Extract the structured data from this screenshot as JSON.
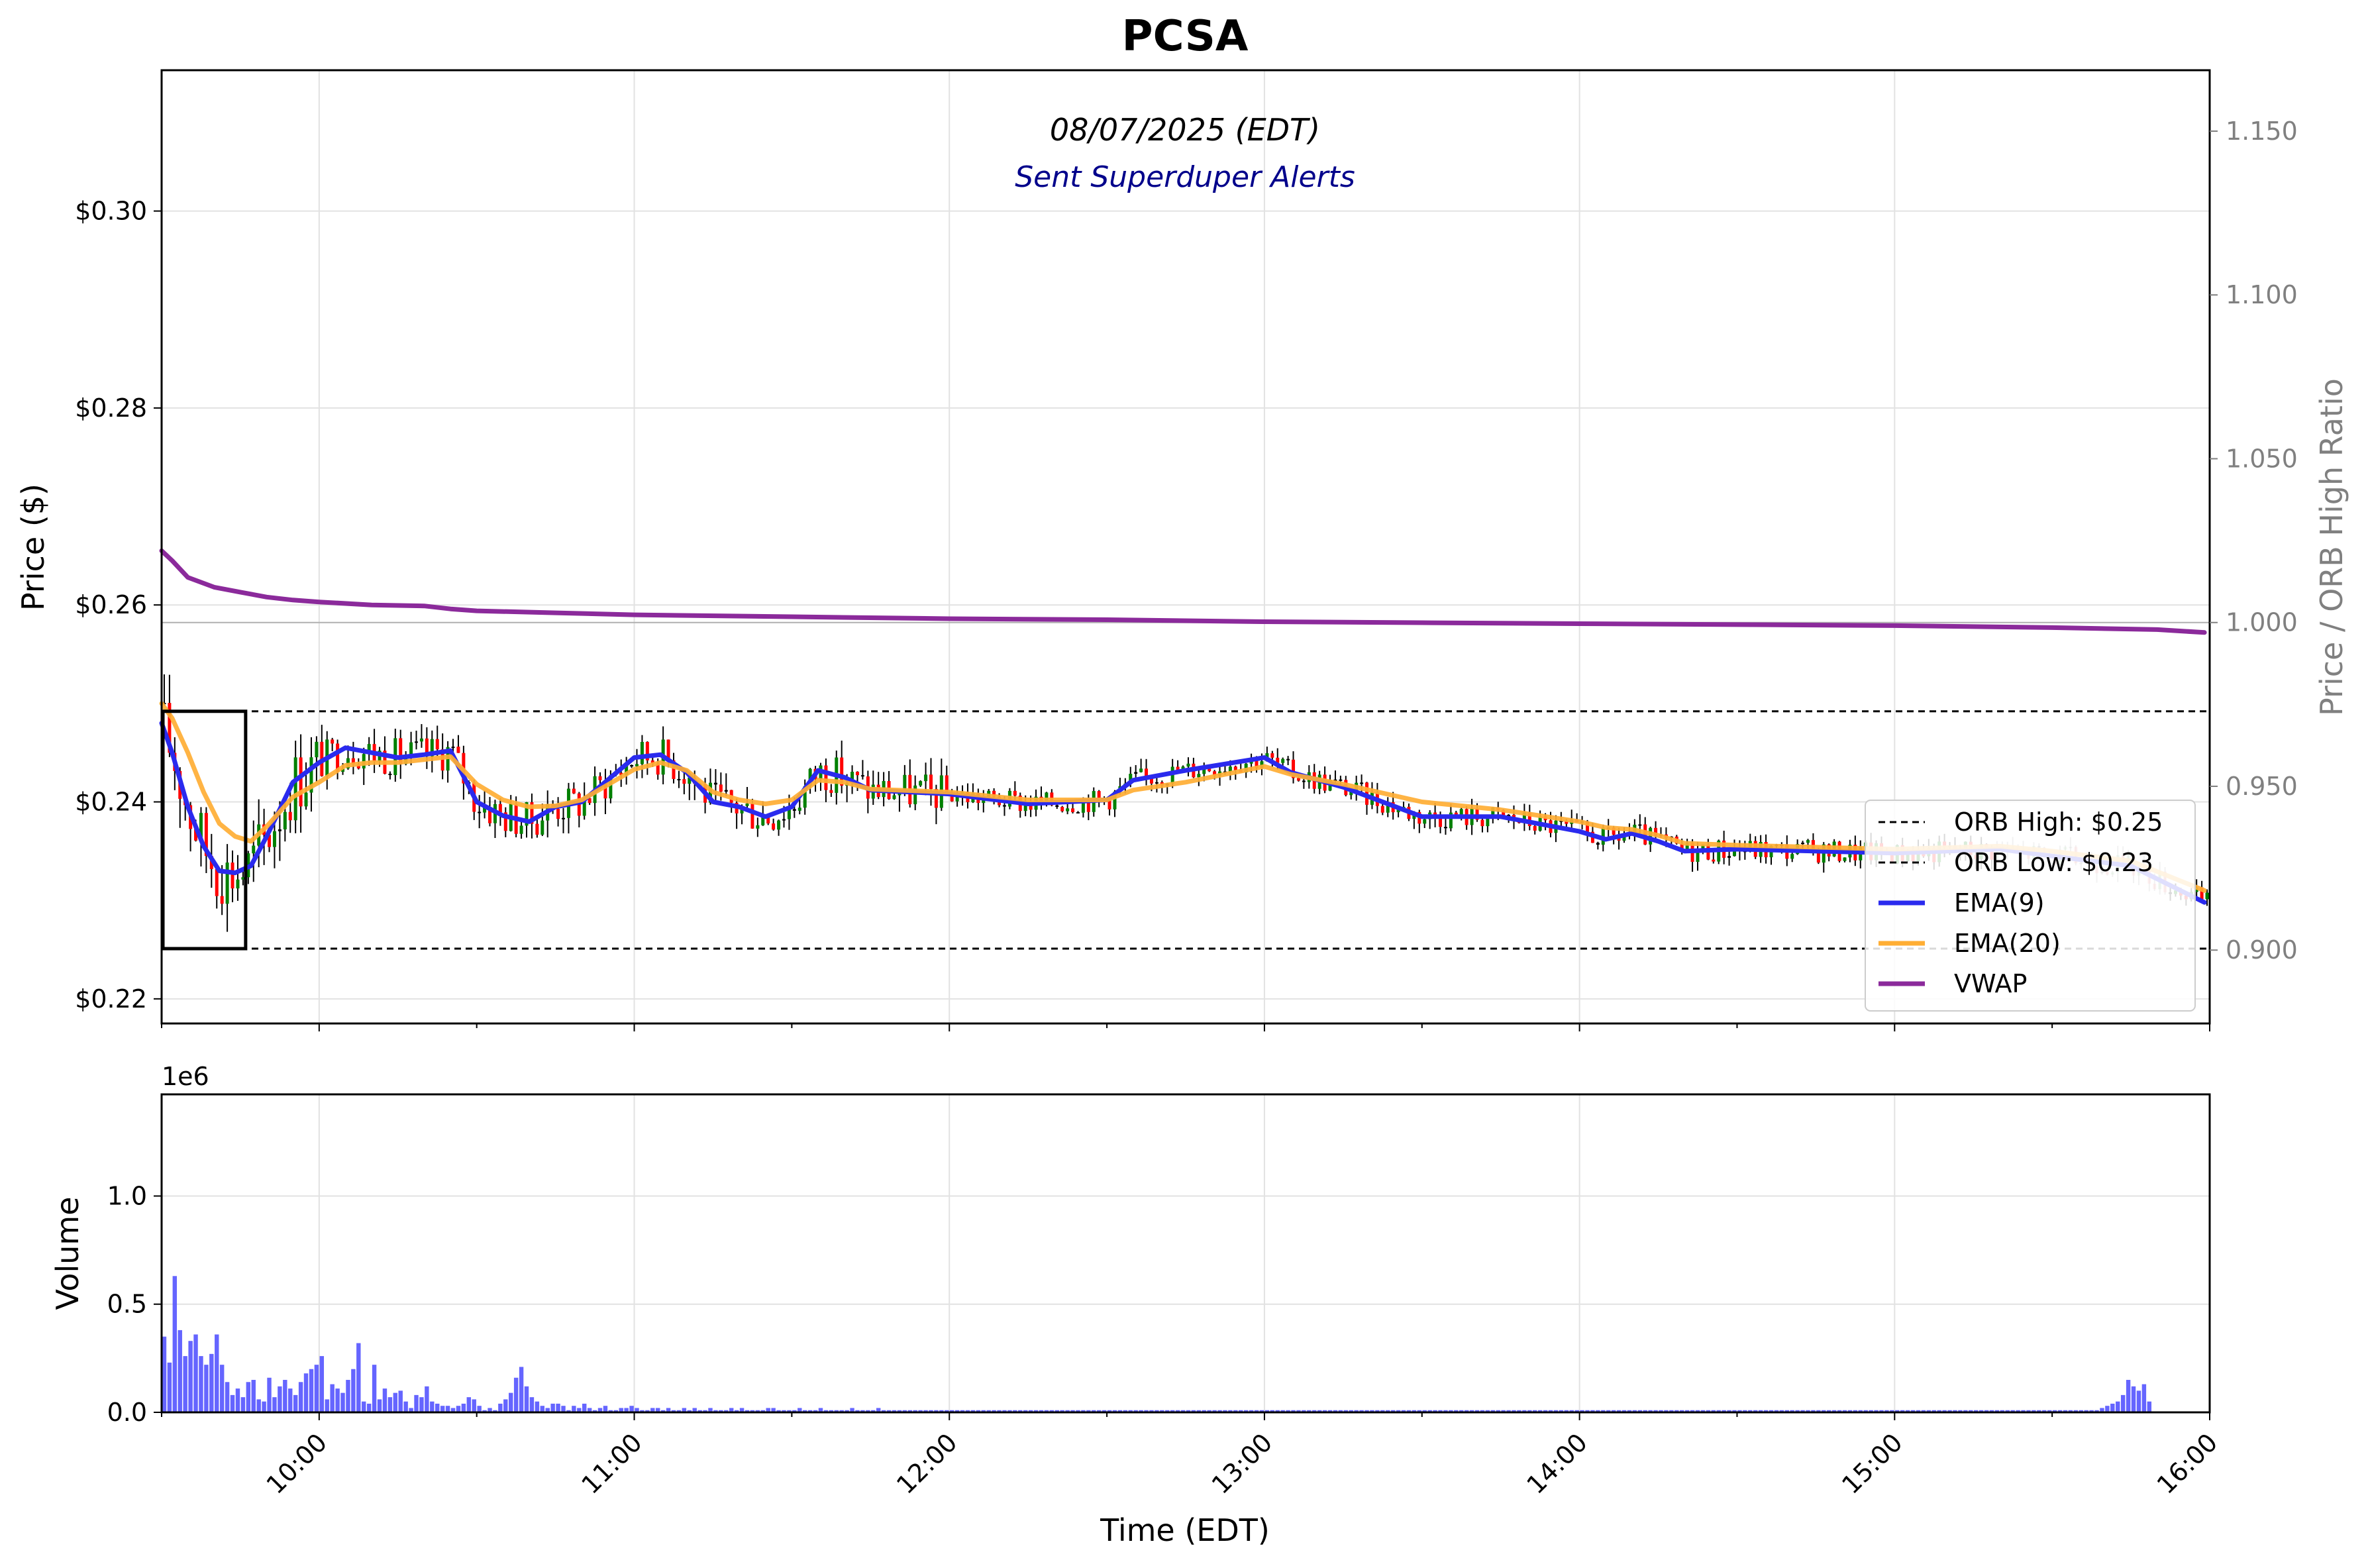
{
  "title": "PCSA",
  "annotations": {
    "date": "08/07/2025 (EDT)",
    "alert": "Sent Superduper Alerts",
    "volume_scale": "1e6"
  },
  "colors": {
    "up_candle": "#008000",
    "down_candle": "#ff0000",
    "doji": "#000000",
    "ema9": "#2a2aee",
    "ema20": "#ffae34",
    "vwap": "#8b2a9b",
    "volume": "#4a4aff",
    "alert_text": "#00008b",
    "right_axis": "#808080"
  },
  "chart_data": [
    {
      "type": "line",
      "panel": "price",
      "ylabel": "Price ($)",
      "y2label": "Price / ORB High Ratio",
      "ylim": [
        0.2175,
        0.3143
      ],
      "y2lim": [
        0.8776,
        1.1686
      ],
      "yticks": [
        "$0.22",
        "$0.24",
        "$0.26",
        "$0.28",
        "$0.30"
      ],
      "y2ticks": [
        "0.900",
        "0.950",
        "1.000",
        "1.050",
        "1.100",
        "1.150"
      ],
      "xlim": [
        "09:30",
        "16:00"
      ],
      "grid": true,
      "legend_position": "lower-right",
      "orb": {
        "high": 0.2492,
        "low": 0.2251,
        "high_label": "ORB High: $0.25",
        "low_label": "ORB Low: $0.23",
        "window": [
          "09:30",
          "09:46"
        ]
      },
      "series": [
        {
          "name": "EMA(9)",
          "x": [
            "09:30",
            "09:32",
            "09:35",
            "09:38",
            "09:41",
            "09:44",
            "09:47",
            "09:50",
            "09:55",
            "10:00",
            "10:05",
            "10:10",
            "10:15",
            "10:20",
            "10:25",
            "10:30",
            "10:35",
            "10:40",
            "10:45",
            "10:50",
            "11:00",
            "11:05",
            "11:10",
            "11:15",
            "11:20",
            "11:25",
            "11:30",
            "11:35",
            "11:40",
            "11:45",
            "12:00",
            "12:15",
            "12:30",
            "12:35",
            "12:45",
            "13:00",
            "13:05",
            "13:15",
            "13:30",
            "13:45",
            "14:00",
            "14:05",
            "14:10",
            "14:15",
            "14:20",
            "14:30",
            "15:00",
            "15:20",
            "15:30",
            "15:45",
            "15:59"
          ],
          "values": [
            0.248,
            0.245,
            0.2395,
            0.2355,
            0.233,
            0.2328,
            0.2335,
            0.2365,
            0.242,
            0.244,
            0.2455,
            0.245,
            0.2445,
            0.2448,
            0.2452,
            0.24,
            0.2386,
            0.238,
            0.2395,
            0.24,
            0.2445,
            0.2448,
            0.243,
            0.24,
            0.2395,
            0.2385,
            0.2395,
            0.2432,
            0.2425,
            0.2412,
            0.2408,
            0.2398,
            0.2402,
            0.2422,
            0.2432,
            0.2445,
            0.243,
            0.2415,
            0.2385,
            0.2385,
            0.237,
            0.2362,
            0.2368,
            0.236,
            0.235,
            0.2352,
            0.2348,
            0.2352,
            0.2345,
            0.2335,
            0.2298
          ]
        },
        {
          "name": "EMA(20)",
          "x": [
            "09:30",
            "09:32",
            "09:35",
            "09:38",
            "09:41",
            "09:44",
            "09:47",
            "09:50",
            "09:55",
            "10:00",
            "10:05",
            "10:10",
            "10:15",
            "10:20",
            "10:25",
            "10:30",
            "10:35",
            "10:40",
            "10:45",
            "10:50",
            "11:00",
            "11:05",
            "11:10",
            "11:15",
            "11:20",
            "11:25",
            "11:30",
            "11:35",
            "11:40",
            "11:45",
            "12:00",
            "12:15",
            "12:30",
            "12:35",
            "12:45",
            "13:00",
            "13:05",
            "13:15",
            "13:30",
            "13:45",
            "14:00",
            "14:05",
            "14:10",
            "14:15",
            "14:20",
            "14:30",
            "15:00",
            "15:20",
            "15:30",
            "15:45",
            "15:59"
          ],
          "values": [
            0.25,
            0.2485,
            0.245,
            0.241,
            0.2378,
            0.2365,
            0.236,
            0.2375,
            0.2405,
            0.242,
            0.2437,
            0.244,
            0.244,
            0.2443,
            0.2446,
            0.2418,
            0.2402,
            0.2395,
            0.2396,
            0.2402,
            0.2433,
            0.244,
            0.2432,
            0.241,
            0.2402,
            0.2398,
            0.2402,
            0.2422,
            0.242,
            0.2413,
            0.241,
            0.2402,
            0.2402,
            0.2412,
            0.242,
            0.2436,
            0.2428,
            0.2418,
            0.24,
            0.2392,
            0.238,
            0.2374,
            0.2372,
            0.2366,
            0.2358,
            0.2356,
            0.2352,
            0.2355,
            0.235,
            0.234,
            0.231
          ]
        },
        {
          "name": "VWAP",
          "x": [
            "09:30",
            "09:32",
            "09:35",
            "09:40",
            "09:45",
            "09:50",
            "09:55",
            "10:00",
            "10:10",
            "10:20",
            "10:25",
            "10:30",
            "10:45",
            "11:00",
            "11:30",
            "12:00",
            "12:30",
            "13:00",
            "13:30",
            "14:00",
            "14:30",
            "15:00",
            "15:30",
            "15:50",
            "15:59"
          ],
          "values": [
            0.2655,
            0.2645,
            0.2628,
            0.2618,
            0.2613,
            0.2608,
            0.2605,
            0.2603,
            0.26,
            0.2599,
            0.2596,
            0.2594,
            0.2592,
            0.259,
            0.2588,
            0.2586,
            0.2585,
            0.2583,
            0.2582,
            0.2581,
            0.258,
            0.2579,
            0.2577,
            0.2575,
            0.2572
          ]
        }
      ]
    },
    {
      "type": "bar",
      "panel": "volume",
      "ylabel": "Volume",
      "xlabel": "Time (EDT)",
      "ylim": [
        0,
        1.47
      ],
      "yticks": [
        "0.0",
        "0.5",
        "1.0"
      ],
      "xticks": [
        "10:00",
        "11:00",
        "12:00",
        "13:00",
        "14:00",
        "15:00",
        "16:00"
      ],
      "grid": true,
      "bin_minutes": 1,
      "start_time": "09:30",
      "values": [
        0.35,
        0.23,
        0.63,
        0.38,
        0.26,
        0.33,
        0.36,
        0.26,
        0.22,
        0.27,
        0.36,
        0.22,
        0.14,
        0.08,
        0.11,
        0.07,
        0.14,
        0.15,
        0.06,
        0.05,
        0.16,
        0.07,
        0.12,
        0.15,
        0.11,
        0.08,
        0.14,
        0.18,
        0.2,
        0.22,
        0.26,
        0.06,
        0.13,
        0.11,
        0.09,
        0.15,
        0.2,
        0.32,
        0.05,
        0.04,
        0.22,
        0.06,
        0.11,
        0.07,
        0.09,
        0.1,
        0.05,
        0.02,
        0.08,
        0.07,
        0.12,
        0.05,
        0.04,
        0.03,
        0.03,
        0.02,
        0.03,
        0.04,
        0.07,
        0.06,
        0.03,
        0.01,
        0.02,
        0.01,
        0.04,
        0.06,
        0.09,
        0.16,
        0.21,
        0.12,
        0.07,
        0.05,
        0.03,
        0.02,
        0.04,
        0.04,
        0.03,
        0.01,
        0.03,
        0.02,
        0.04,
        0.02,
        0.01,
        0.02,
        0.03,
        0.01,
        0.01,
        0.02,
        0.02,
        0.03,
        0.02,
        0.01,
        0.01,
        0.02,
        0.02,
        0.01,
        0.02,
        0.01,
        0.01,
        0.02,
        0.01,
        0.02,
        0.01,
        0.01,
        0.02,
        0.01,
        0.01,
        0.01,
        0.02,
        0.01,
        0.02,
        0.01,
        0.01,
        0.01,
        0.01,
        0.02,
        0.02,
        0.01,
        0.01,
        0.01,
        0.01,
        0.02,
        0.01,
        0.01,
        0.01,
        0.02,
        0.01,
        0.01,
        0.01,
        0.01,
        0.01,
        0.02,
        0.01,
        0.01,
        0.01,
        0.01,
        0.02,
        0.01,
        0.01,
        0.01,
        0.01,
        0.01,
        0.01,
        0.01,
        0.01,
        0.01,
        0.01,
        0.01,
        0.01,
        0.01,
        0.01,
        0.01,
        0.01,
        0.01,
        0.01,
        0.01,
        0.01,
        0.01,
        0.01,
        0.01,
        0.01,
        0.01,
        0.01,
        0.01,
        0.01,
        0.01,
        0.01,
        0.01,
        0.01,
        0.01,
        0.01,
        0.01,
        0.01,
        0.01,
        0.01,
        0.01,
        0.01,
        0.01,
        0.01,
        0.01,
        0.01,
        0.01,
        0.01,
        0.01,
        0.01,
        0.01,
        0.01,
        0.01,
        0.01,
        0.01,
        0.01,
        0.01,
        0.01,
        0.01,
        0.01,
        0.01,
        0.01,
        0.01,
        0.01,
        0.01,
        0.01,
        0.01,
        0.01,
        0.01,
        0.01,
        0.01,
        0.01,
        0.01,
        0.01,
        0.01,
        0.01,
        0.01,
        0.01,
        0.01,
        0.01,
        0.01,
        0.01,
        0.01,
        0.01,
        0.01,
        0.01,
        0.01,
        0.01,
        0.01,
        0.01,
        0.01,
        0.01,
        0.01,
        0.01,
        0.01,
        0.01,
        0.01,
        0.01,
        0.01,
        0.01,
        0.01,
        0.01,
        0.01,
        0.01,
        0.01,
        0.01,
        0.01,
        0.01,
        0.01,
        0.01,
        0.01,
        0.01,
        0.01,
        0.01,
        0.01,
        0.01,
        0.01,
        0.01,
        0.01,
        0.01,
        0.01,
        0.01,
        0.01,
        0.01,
        0.01,
        0.01,
        0.01,
        0.01,
        0.01,
        0.01,
        0.01,
        0.01,
        0.01,
        0.01,
        0.01,
        0.01,
        0.01,
        0.01,
        0.01,
        0.01,
        0.01,
        0.01,
        0.01,
        0.01,
        0.01,
        0.01,
        0.01,
        0.01,
        0.01,
        0.01,
        0.01,
        0.01,
        0.01,
        0.01,
        0.01,
        0.01,
        0.01,
        0.01,
        0.01,
        0.01,
        0.01,
        0.01,
        0.01,
        0.01,
        0.01,
        0.01,
        0.01,
        0.01,
        0.01,
        0.01,
        0.01,
        0.01,
        0.01,
        0.01,
        0.01,
        0.01,
        0.01,
        0.01,
        0.01,
        0.01,
        0.01,
        0.01,
        0.01,
        0.01,
        0.01,
        0.01,
        0.01,
        0.01,
        0.01,
        0.01,
        0.01,
        0.01,
        0.01,
        0.01,
        0.01,
        0.01,
        0.01,
        0.01,
        0.01,
        0.01,
        0.01,
        0.01,
        0.01,
        0.01,
        0.01,
        0.01,
        0.01,
        0.01,
        0.01,
        0.01,
        0.01,
        0.01,
        0.01,
        0.01,
        0.01,
        0.01,
        0.01,
        0.01,
        0.01,
        0.01,
        0.01,
        0.01,
        0.01,
        0.01,
        0.01,
        0.01,
        0.01,
        0.01,
        0.01,
        0.01,
        0.01,
        0.01,
        0.01,
        0.01,
        0.02,
        0.03,
        0.04,
        0.05,
        0.08,
        0.15,
        0.12,
        0.1,
        0.13,
        0.05
      ]
    }
  ]
}
